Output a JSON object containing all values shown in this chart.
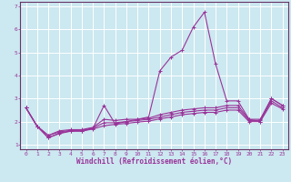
{
  "xlabel": "Windchill (Refroidissement éolien,°C)",
  "background_color": "#cce8f0",
  "grid_color": "#ffffff",
  "line_color": "#993399",
  "spine_color": "#663366",
  "x": [
    0,
    1,
    2,
    3,
    4,
    5,
    6,
    7,
    8,
    9,
    10,
    11,
    12,
    13,
    14,
    15,
    16,
    17,
    18,
    19,
    20,
    21,
    22,
    23
  ],
  "lines": [
    [
      2.6,
      1.8,
      1.3,
      1.5,
      1.6,
      1.6,
      1.7,
      2.7,
      1.9,
      2.0,
      2.1,
      2.2,
      4.2,
      4.8,
      5.1,
      6.1,
      6.75,
      4.5,
      2.9,
      2.9,
      2.1,
      2.0,
      3.0,
      2.7
    ],
    [
      2.6,
      1.8,
      1.4,
      1.6,
      1.65,
      1.65,
      1.75,
      2.1,
      2.05,
      2.1,
      2.1,
      2.15,
      2.3,
      2.4,
      2.5,
      2.55,
      2.6,
      2.6,
      2.7,
      2.7,
      2.1,
      2.1,
      3.0,
      2.7
    ],
    [
      2.6,
      1.8,
      1.4,
      1.55,
      1.62,
      1.62,
      1.72,
      1.95,
      1.95,
      2.0,
      2.05,
      2.1,
      2.2,
      2.3,
      2.4,
      2.45,
      2.5,
      2.5,
      2.6,
      2.6,
      2.05,
      2.05,
      2.9,
      2.6
    ],
    [
      2.6,
      1.8,
      1.3,
      1.48,
      1.58,
      1.58,
      1.68,
      1.82,
      1.88,
      1.92,
      1.98,
      2.02,
      2.12,
      2.2,
      2.3,
      2.35,
      2.4,
      2.4,
      2.5,
      2.5,
      2.0,
      2.0,
      2.8,
      2.55
    ]
  ],
  "ylim": [
    0.8,
    7.2
  ],
  "yticks": [
    1,
    2,
    3,
    4,
    5,
    6,
    7
  ],
  "xlim": [
    -0.5,
    23.5
  ],
  "xticks": [
    0,
    1,
    2,
    3,
    4,
    5,
    6,
    7,
    8,
    9,
    10,
    11,
    12,
    13,
    14,
    15,
    16,
    17,
    18,
    19,
    20,
    21,
    22,
    23
  ],
  "marker": "+",
  "markersize": 3,
  "linewidth": 0.8,
  "tick_fontsize": 4.5,
  "label_fontsize": 5.5
}
